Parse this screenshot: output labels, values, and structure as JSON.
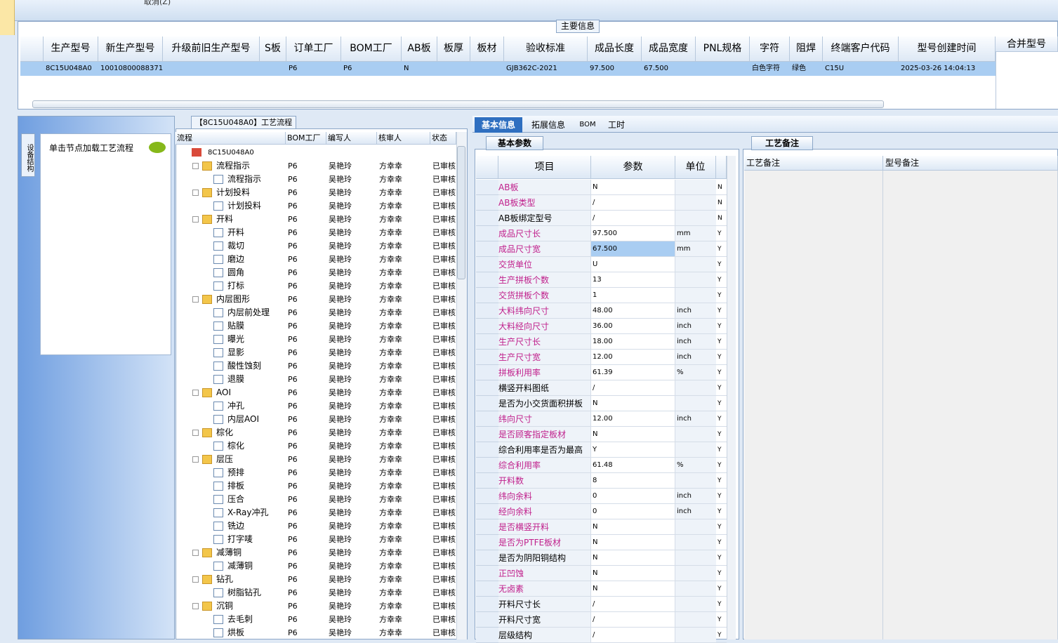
{
  "toolbar": {
    "cancel": "取消(Z)"
  },
  "main_info": {
    "title": "主要信息",
    "columns": [
      "生产型号",
      "新生产型号",
      "升级前旧生产型号",
      "S板",
      "订单工厂",
      "BOM工厂",
      "AB板",
      "板厚",
      "板材",
      "验收标准",
      "成品长度",
      "成品宽度",
      "PNL规格",
      "字符",
      "阻焊",
      "终端客户代码",
      "型号创建时间"
    ],
    "row": [
      "8C15U048A0",
      "10010800088371",
      null,
      null,
      "P6",
      "P6",
      "N",
      null,
      null,
      "GJB362C-2021",
      "97.500",
      "67.500",
      null,
      "白色字符",
      "绿色",
      "C15U",
      "2025-03-26 14:04:13"
    ],
    "side_column": "合并型号"
  },
  "left_panel": {
    "tab": "设备结构",
    "hint": "单击节点加载工艺流程"
  },
  "process": {
    "title": "【8C15U048A0】工艺流程",
    "columns": [
      "流程",
      "BOM工厂",
      "编写人",
      "核审人",
      "状态"
    ],
    "root": "8C15U048A0",
    "groups": [
      {
        "row": [
          "流程指示",
          "P6",
          "吴艳玲",
          "方幸幸",
          "已审核"
        ],
        "children": [
          [
            "流程指示",
            "P6",
            "吴艳玲",
            "方幸幸",
            "已审核"
          ]
        ]
      },
      {
        "row": [
          "计划投料",
          "P6",
          "吴艳玲",
          "方幸幸",
          "已审核"
        ],
        "children": [
          [
            "计划投料",
            "P6",
            "吴艳玲",
            "方幸幸",
            "已审核"
          ]
        ]
      },
      {
        "row": [
          "开料",
          "P6",
          "吴艳玲",
          "方幸幸",
          "已审核"
        ],
        "children": [
          [
            "开料",
            "P6",
            "吴艳玲",
            "方幸幸",
            "已审核"
          ],
          [
            "裁切",
            "P6",
            "吴艳玲",
            "方幸幸",
            "已审核"
          ],
          [
            "磨边",
            "P6",
            "吴艳玲",
            "方幸幸",
            "已审核"
          ],
          [
            "圆角",
            "P6",
            "吴艳玲",
            "方幸幸",
            "已审核"
          ],
          [
            "打标",
            "P6",
            "吴艳玲",
            "方幸幸",
            "已审核"
          ]
        ]
      },
      {
        "row": [
          "内层图形",
          "P6",
          "吴艳玲",
          "方幸幸",
          "已审核"
        ],
        "children": [
          [
            "内层前处理",
            "P6",
            "吴艳玲",
            "方幸幸",
            "已审核"
          ],
          [
            "贴膜",
            "P6",
            "吴艳玲",
            "方幸幸",
            "已审核"
          ],
          [
            "曝光",
            "P6",
            "吴艳玲",
            "方幸幸",
            "已审核"
          ],
          [
            "显影",
            "P6",
            "吴艳玲",
            "方幸幸",
            "已审核"
          ],
          [
            "酸性蚀刻",
            "P6",
            "吴艳玲",
            "方幸幸",
            "已审核"
          ],
          [
            "退膜",
            "P6",
            "吴艳玲",
            "方幸幸",
            "已审核"
          ]
        ]
      },
      {
        "row": [
          "AOI",
          "P6",
          "吴艳玲",
          "方幸幸",
          "已审核"
        ],
        "children": [
          [
            "冲孔",
            "P6",
            "吴艳玲",
            "方幸幸",
            "已审核"
          ],
          [
            "内层AOI",
            "P6",
            "吴艳玲",
            "方幸幸",
            "已审核"
          ]
        ]
      },
      {
        "row": [
          "棕化",
          "P6",
          "吴艳玲",
          "方幸幸",
          "已审核"
        ],
        "children": [
          [
            "棕化",
            "P6",
            "吴艳玲",
            "方幸幸",
            "已审核"
          ]
        ]
      },
      {
        "row": [
          "层压",
          "P6",
          "吴艳玲",
          "方幸幸",
          "已审核"
        ],
        "children": [
          [
            "预排",
            "P6",
            "吴艳玲",
            "方幸幸",
            "已审核"
          ],
          [
            "排板",
            "P6",
            "吴艳玲",
            "方幸幸",
            "已审核"
          ],
          [
            "压合",
            "P6",
            "吴艳玲",
            "方幸幸",
            "已审核"
          ],
          [
            "X-Ray冲孔",
            "P6",
            "吴艳玲",
            "方幸幸",
            "已审核"
          ],
          [
            "铣边",
            "P6",
            "吴艳玲",
            "方幸幸",
            "已审核"
          ],
          [
            "打字唛",
            "P6",
            "吴艳玲",
            "方幸幸",
            "已审核"
          ]
        ]
      },
      {
        "row": [
          "减薄铜",
          "P6",
          "吴艳玲",
          "方幸幸",
          "已审核"
        ],
        "children": [
          [
            "减薄铜",
            "P6",
            "吴艳玲",
            "方幸幸",
            "已审核"
          ]
        ]
      },
      {
        "row": [
          "钻孔",
          "P6",
          "吴艳玲",
          "方幸幸",
          "已审核"
        ],
        "children": [
          [
            "树脂钻孔",
            "P6",
            "吴艳玲",
            "方幸幸",
            "已审核"
          ]
        ]
      },
      {
        "row": [
          "沉铜",
          "P6",
          "吴艳玲",
          "方幸幸",
          "已审核"
        ],
        "children": [
          [
            "去毛刺",
            "P6",
            "吴艳玲",
            "方幸幸",
            "已审核"
          ],
          [
            "烘板",
            "P6",
            "吴艳玲",
            "方幸幸",
            "已审核"
          ]
        ]
      }
    ]
  },
  "tabs": [
    "基本信息",
    "拓展信息",
    "BOM",
    "工时"
  ],
  "basic_params": {
    "title": "基本参数",
    "columns": [
      "项目",
      "参数",
      "单位"
    ],
    "rows": [
      {
        "item": "AB板",
        "value": "N",
        "flag": "N",
        "color": "#c0208c"
      },
      {
        "item": "AB板类型",
        "value": "/",
        "flag": "N",
        "color": "#c0208c"
      },
      {
        "item": "AB板绑定型号",
        "value": "/",
        "flag": "N",
        "color": "#000000"
      },
      {
        "item": "成品尺寸长",
        "value": "97.500",
        "unit": "mm",
        "flag": "Y",
        "color": "#c0208c"
      },
      {
        "item": "成品尺寸宽",
        "value": "67.500",
        "unit": "mm",
        "flag": "Y",
        "color": "#c0208c"
      },
      {
        "item": "交货单位",
        "value": "U",
        "flag": "Y",
        "color": "#c0208c"
      },
      {
        "item": "生产拼板个数",
        "value": "13",
        "flag": "Y",
        "color": "#c0208c"
      },
      {
        "item": "交货拼板个数",
        "value": "1",
        "flag": "Y",
        "color": "#c0208c"
      },
      {
        "item": "大料纬向尺寸",
        "value": "48.00",
        "unit": "inch",
        "flag": "Y",
        "color": "#c0208c"
      },
      {
        "item": "大料经向尺寸",
        "value": "36.00",
        "unit": "inch",
        "flag": "Y",
        "color": "#c0208c"
      },
      {
        "item": "生产尺寸长",
        "value": "18.00",
        "unit": "inch",
        "flag": "Y",
        "color": "#c0208c"
      },
      {
        "item": "生产尺寸宽",
        "value": "12.00",
        "unit": "inch",
        "flag": "Y",
        "color": "#c0208c"
      },
      {
        "item": "拼板利用率",
        "value": "61.39",
        "unit": "%",
        "flag": "Y",
        "color": "#c0208c"
      },
      {
        "item": "横竖开料图纸",
        "value": "/",
        "flag": "Y",
        "color": "#000000"
      },
      {
        "item": "是否为小交货面积拼板",
        "value": "N",
        "flag": "Y",
        "color": "#000000"
      },
      {
        "item": "纬向尺寸",
        "value": "12.00",
        "unit": "inch",
        "flag": "Y",
        "color": "#c0208c"
      },
      {
        "item": "是否顾客指定板材",
        "value": "N",
        "flag": "Y",
        "color": "#c0208c"
      },
      {
        "item": "综合利用率是否为最高",
        "value": "Y",
        "flag": "Y",
        "color": "#000000"
      },
      {
        "item": "综合利用率",
        "value": "61.48",
        "unit": "%",
        "flag": "Y",
        "color": "#c0208c"
      },
      {
        "item": "开料数",
        "value": "8",
        "flag": "Y",
        "color": "#c0208c"
      },
      {
        "item": "纬向余料",
        "value": "0",
        "unit": "inch",
        "flag": "Y",
        "color": "#c0208c"
      },
      {
        "item": "经向余料",
        "value": "0",
        "unit": "inch",
        "flag": "Y",
        "color": "#c0208c"
      },
      {
        "item": "是否横竖开料",
        "value": "N",
        "flag": "Y",
        "color": "#c0208c"
      },
      {
        "item": "是否为PTFE板材",
        "value": "N",
        "flag": "Y",
        "color": "#c0208c"
      },
      {
        "item": "是否为阴阳铜结构",
        "value": "N",
        "flag": "Y",
        "color": "#000000"
      },
      {
        "item": "正凹蚀",
        "value": "N",
        "flag": "Y",
        "color": "#c0208c"
      },
      {
        "item": "无卤素",
        "value": "N",
        "flag": "Y",
        "color": "#c0208c"
      },
      {
        "item": "开料尺寸长",
        "value": "/",
        "flag": "Y",
        "color": "#000000"
      },
      {
        "item": "开料尺寸宽",
        "value": "/",
        "flag": "Y",
        "color": "#000000"
      },
      {
        "item": "层级结构",
        "value": "/",
        "flag": "Y",
        "color": "#000000"
      }
    ]
  },
  "notes": {
    "title": "工艺备注",
    "columns": [
      "工艺备注",
      "型号备注"
    ]
  }
}
